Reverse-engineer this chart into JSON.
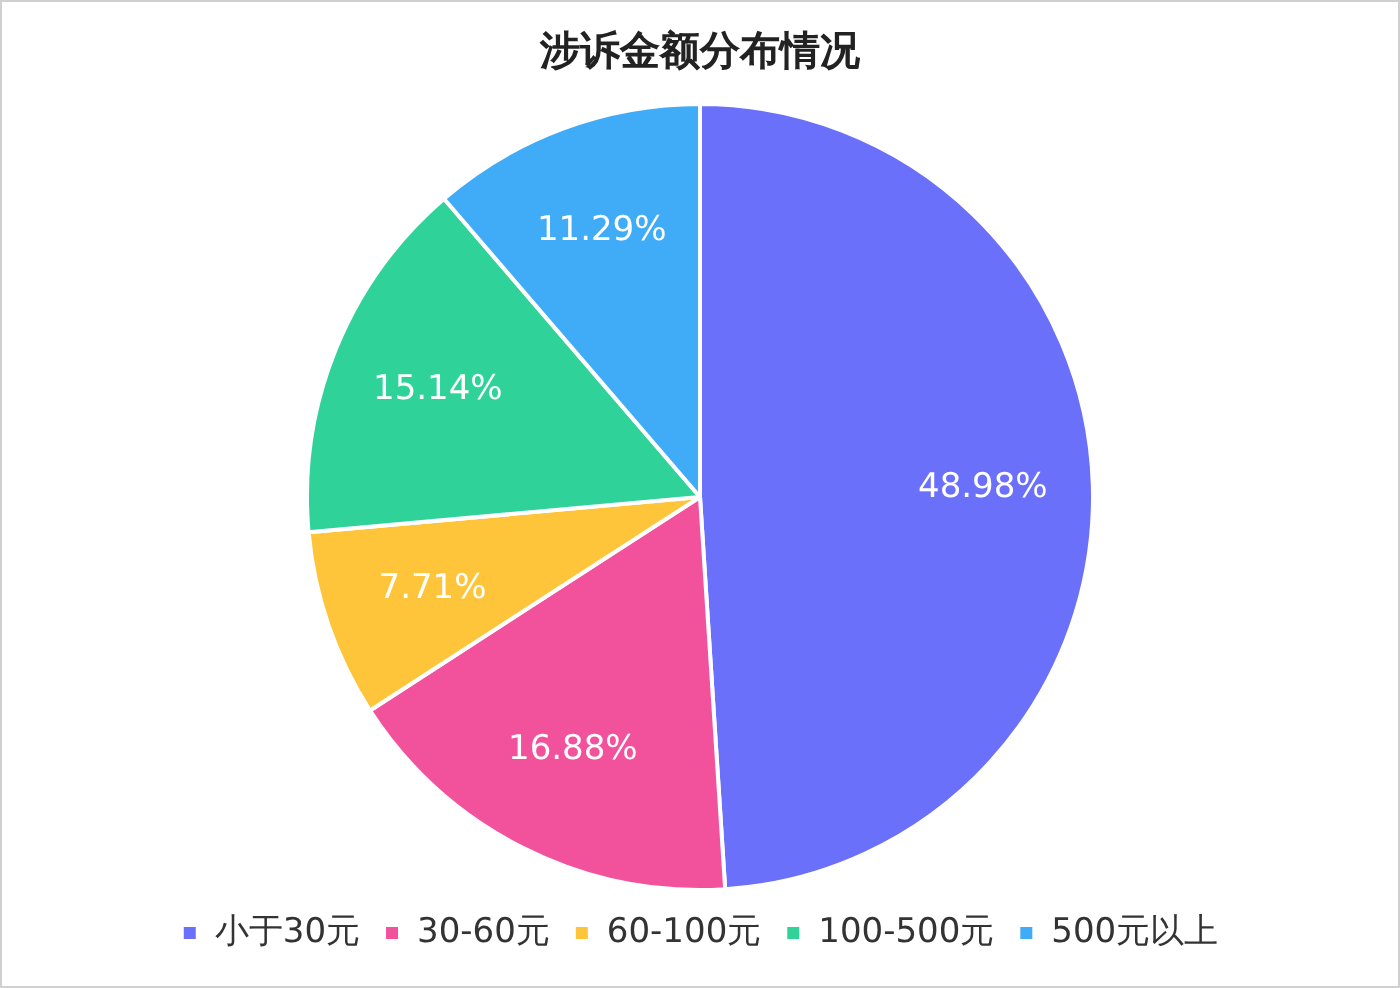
{
  "chart_data": {
    "type": "pie",
    "title": "涉诉金额分布情况",
    "categories": [
      "小于30元",
      "30-60元",
      "60-100元",
      "100-500元",
      "500元以上"
    ],
    "values": [
      48.98,
      16.88,
      7.71,
      15.14,
      11.29
    ],
    "colors": [
      "#6b70fa",
      "#f2529c",
      "#ffc53a",
      "#2fd39a",
      "#40abf6"
    ],
    "value_labels": [
      "48.98%",
      "16.88%",
      "7.71%",
      "15.14%",
      "11.29%"
    ],
    "legend": "bottom"
  }
}
